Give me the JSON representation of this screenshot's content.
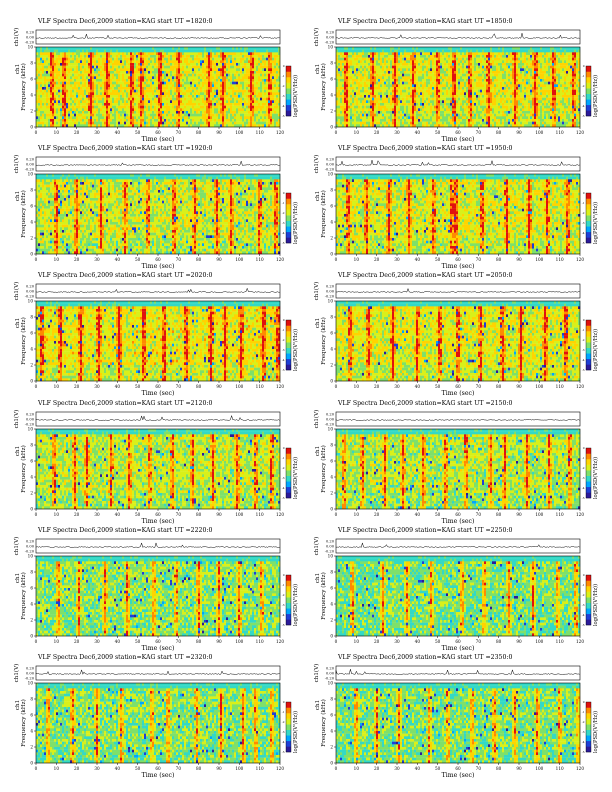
{
  "figure": {
    "title_prefix": "VLF Spectra",
    "date": "Dec6,2009",
    "station": "station=KAG",
    "start_label": "start  UT"
  },
  "chart_data": [
    {
      "type": "heatmap",
      "title": "VLF Spectra      Dec6,2009      station=KAG   start  UT  =1820:0",
      "start_ut": "=1820:0",
      "xlabel": "Time (sec)",
      "ylabel_top": "ch1(V)",
      "ylabel_main": "Frequency (kHz)",
      "channel_label": "ch1",
      "cbar_label": "log(PSD(V²/Hz))",
      "xlim": [
        0,
        120
      ],
      "ylim": [
        0,
        10
      ],
      "x_ticks": [
        0,
        10,
        20,
        30,
        40,
        50,
        60,
        70,
        80,
        90,
        100,
        110,
        120
      ],
      "y_ticks": [
        0,
        2,
        4,
        6,
        8,
        10
      ],
      "top_ticks": [
        "0.20",
        "0.00",
        "-0.20"
      ],
      "cbar_ticks": [
        0,
        -1,
        -2,
        -3,
        -4,
        -5
      ],
      "cutoff_khz": 9.3,
      "activity": 0.85,
      "vertical_bursts": [
        8,
        14,
        27,
        35,
        47,
        52,
        61,
        70,
        85,
        92,
        106,
        115
      ]
    },
    {
      "type": "heatmap",
      "title": "VLF Spectra      Dec6,2009      station=KAG   start  UT  =1850:0",
      "start_ut": "=1850:0",
      "xlabel": "Time (sec)",
      "ylabel_top": "ch1(V)",
      "ylabel_main": "Frequency (kHz)",
      "channel_label": "ch1",
      "cbar_label": "log(PSD(V²/Hz))",
      "xlim": [
        0,
        120
      ],
      "ylim": [
        0,
        10
      ],
      "x_ticks": [
        0,
        10,
        20,
        30,
        40,
        50,
        60,
        70,
        80,
        90,
        100,
        110,
        120
      ],
      "y_ticks": [
        0,
        2,
        4,
        6,
        8,
        10
      ],
      "top_ticks": [
        "0.20",
        "0.00",
        "-0.20"
      ],
      "cbar_ticks": [
        0,
        -1,
        -2,
        -3,
        -4,
        -5
      ],
      "cutoff_khz": 9.3,
      "activity": 0.8,
      "vertical_bursts": [
        5,
        18,
        29,
        38,
        50,
        58,
        66,
        75,
        88,
        98,
        107,
        117
      ]
    },
    {
      "type": "heatmap",
      "title": "VLF Spectra      Dec6,2009      station=KAG   start  UT  =1920:0",
      "start_ut": "=1920:0",
      "xlabel": "Time (sec)",
      "ylabel_top": "ch1(V)",
      "ylabel_main": "Frequency (kHz)",
      "channel_label": "ch1",
      "cbar_label": "log(PSD(V²/Hz))",
      "xlim": [
        0,
        120
      ],
      "ylim": [
        0,
        10
      ],
      "x_ticks": [
        0,
        10,
        20,
        30,
        40,
        50,
        60,
        70,
        80,
        90,
        100,
        110,
        120
      ],
      "y_ticks": [
        0,
        2,
        4,
        6,
        8,
        10
      ],
      "top_ticks": [
        "0.20",
        "0.00",
        "-0.20"
      ],
      "cbar_ticks": [
        0,
        -1,
        -2,
        -3,
        -4,
        -5
      ],
      "cutoff_khz": 9.3,
      "activity": 0.7,
      "vertical_bursts": [
        10,
        20,
        32,
        44,
        55,
        68,
        78,
        89,
        96,
        110,
        118
      ]
    },
    {
      "type": "heatmap",
      "title": "VLF Spectra      Dec6,2009      station=KAG   start  UT  =1950:0",
      "start_ut": "=1950:0",
      "xlabel": "Time (sec)",
      "ylabel_top": "ch1(V)",
      "ylabel_main": "Frequency (kHz)",
      "channel_label": "ch1",
      "cbar_label": "log(PSD(V²/Hz))",
      "xlim": [
        0,
        120
      ],
      "ylim": [
        0,
        10
      ],
      "x_ticks": [
        0,
        10,
        20,
        30,
        40,
        50,
        60,
        70,
        80,
        90,
        100,
        110,
        120
      ],
      "y_ticks": [
        0,
        2,
        4,
        6,
        8,
        10
      ],
      "top_ticks": [
        "0.20",
        "0.00",
        "-0.20"
      ],
      "cbar_ticks": [
        0,
        -1,
        -2,
        -3,
        -4,
        -5
      ],
      "cutoff_khz": 9.3,
      "activity": 0.78,
      "vertical_bursts": [
        6,
        15,
        26,
        36,
        48,
        57,
        59,
        72,
        84,
        95,
        104,
        114
      ]
    },
    {
      "type": "heatmap",
      "title": "VLF Spectra      Dec6,2009      station=KAG   start  UT  =2020:0",
      "start_ut": "=2020:0",
      "xlabel": "Time (sec)",
      "ylabel_top": "ch1(V)",
      "ylabel_main": "Frequency (kHz)",
      "channel_label": "ch1",
      "cbar_label": "log(PSD(V²/Hz))",
      "xlim": [
        0,
        120
      ],
      "ylim": [
        0,
        10
      ],
      "x_ticks": [
        0,
        10,
        20,
        30,
        40,
        50,
        60,
        70,
        80,
        90,
        100,
        110,
        120
      ],
      "y_ticks": [
        0,
        2,
        4,
        6,
        8,
        10
      ],
      "top_ticks": [
        "0.20",
        "0.00",
        "-0.20"
      ],
      "cbar_ticks": [
        0,
        -1,
        -2,
        -3,
        -4,
        -5
      ],
      "cutoff_khz": 9.3,
      "activity": 0.9,
      "vertical_bursts": [
        3,
        12,
        22,
        31,
        41,
        53,
        63,
        74,
        86,
        93,
        101,
        112,
        119
      ]
    },
    {
      "type": "heatmap",
      "title": "VLF Spectra      Dec6,2009      station=KAG   start  UT  =2050:0",
      "start_ut": "=2050:0",
      "xlabel": "Time (sec)",
      "ylabel_top": "ch1(V)",
      "ylabel_main": "Frequency (kHz)",
      "channel_label": "ch1",
      "cbar_label": "log(PSD(V²/Hz))",
      "xlim": [
        0,
        120
      ],
      "ylim": [
        0,
        10
      ],
      "x_ticks": [
        0,
        10,
        20,
        30,
        40,
        50,
        60,
        70,
        80,
        90,
        100,
        110,
        120
      ],
      "y_ticks": [
        0,
        2,
        4,
        6,
        8,
        10
      ],
      "top_ticks": [
        "0.20",
        "0.00",
        "-0.20"
      ],
      "cbar_ticks": [
        0,
        -1,
        -2,
        -3,
        -4,
        -5
      ],
      "cutoff_khz": 9.3,
      "activity": 0.82,
      "vertical_bursts": [
        7,
        16,
        28,
        40,
        51,
        60,
        71,
        82,
        91,
        103,
        113
      ]
    },
    {
      "type": "heatmap",
      "title": "VLF Spectra      Dec6,2009      station=KAG   start  UT  =2120:0",
      "start_ut": "=2120:0",
      "xlabel": "Time (sec)",
      "ylabel_top": "ch1(V)",
      "ylabel_main": "Frequency (kHz)",
      "channel_label": "ch1",
      "cbar_label": "log(PSD(V²/Hz))",
      "xlim": [
        0,
        120
      ],
      "ylim": [
        0,
        10
      ],
      "x_ticks": [
        0,
        10,
        20,
        30,
        40,
        50,
        60,
        70,
        80,
        90,
        100,
        110,
        120
      ],
      "y_ticks": [
        0,
        2,
        4,
        6,
        8,
        10
      ],
      "top_ticks": [
        "0.20",
        "0.00",
        "-0.20"
      ],
      "cbar_ticks": [
        0,
        -1,
        -2,
        -3,
        -4,
        -5
      ],
      "cutoff_khz": 9.3,
      "activity": 0.6,
      "vertical_bursts": [
        9,
        19,
        25,
        37,
        46,
        56,
        67,
        77,
        87,
        99,
        108,
        116
      ]
    },
    {
      "type": "heatmap",
      "title": "VLF Spectra      Dec6,2009      station=KAG   start  UT  =2150:0",
      "start_ut": "=2150:0",
      "xlabel": "Time (sec)",
      "ylabel_top": "ch1(V)",
      "ylabel_main": "Frequency (kHz)",
      "channel_label": "ch1",
      "cbar_label": "log(PSD(V²/Hz))",
      "xlim": [
        0,
        120
      ],
      "ylim": [
        0,
        10
      ],
      "x_ticks": [
        0,
        10,
        20,
        30,
        40,
        50,
        60,
        70,
        80,
        90,
        100,
        110,
        120
      ],
      "y_ticks": [
        0,
        2,
        4,
        6,
        8,
        10
      ],
      "top_ticks": [
        "0.20",
        "0.00",
        "-0.20"
      ],
      "cbar_ticks": [
        0,
        -1,
        -2,
        -3,
        -4,
        -5
      ],
      "cutoff_khz": 9.3,
      "activity": 0.55,
      "vertical_bursts": [
        4,
        13,
        24,
        33,
        43,
        54,
        64,
        76,
        83,
        94,
        105,
        115
      ]
    },
    {
      "type": "heatmap",
      "title": "VLF Spectra      Dec6,2009      station=KAG   start  UT  =2220:0",
      "start_ut": "=2220:0",
      "xlabel": "Time (sec)",
      "ylabel_top": "ch1(V)",
      "ylabel_main": "Frequency (kHz)",
      "channel_label": "ch1",
      "cbar_label": "log(PSD(V²/Hz))",
      "xlim": [
        0,
        120
      ],
      "ylim": [
        0,
        10
      ],
      "x_ticks": [
        0,
        10,
        20,
        30,
        40,
        50,
        60,
        70,
        80,
        90,
        100,
        110,
        120
      ],
      "y_ticks": [
        0,
        2,
        4,
        6,
        8,
        10
      ],
      "top_ticks": [
        "0.20",
        "0.00",
        "-0.20"
      ],
      "cbar_ticks": [
        0,
        -1,
        -2,
        -3,
        -4,
        -5
      ],
      "cutoff_khz": 9.3,
      "activity": 0.4,
      "vertical_bursts": [
        11,
        21,
        34,
        45,
        58,
        69,
        80,
        90,
        100,
        111
      ]
    },
    {
      "type": "heatmap",
      "title": "VLF Spectra      Dec6,2009      station=KAG   start  UT  =2250:0",
      "start_ut": "=2250:0",
      "xlabel": "Time (sec)",
      "ylabel_top": "ch1(V)",
      "ylabel_main": "Frequency (kHz)",
      "channel_label": "ch1",
      "cbar_label": "log(PSD(V²/Hz))",
      "xlim": [
        0,
        120
      ],
      "ylim": [
        0,
        10
      ],
      "x_ticks": [
        0,
        10,
        20,
        30,
        40,
        50,
        60,
        70,
        80,
        90,
        100,
        110,
        120
      ],
      "y_ticks": [
        0,
        2,
        4,
        6,
        8,
        10
      ],
      "top_ticks": [
        "0.20",
        "0.00",
        "-0.20"
      ],
      "cbar_ticks": [
        0,
        -1,
        -2,
        -3,
        -4,
        -5
      ],
      "cutoff_khz": 9.3,
      "activity": 0.3,
      "vertical_bursts": [
        8,
        23,
        35,
        47,
        62,
        73,
        85,
        97,
        109,
        118
      ]
    },
    {
      "type": "heatmap",
      "title": "VLF Spectra      Dec6,2009      station=KAG   start  UT  =2320:0",
      "start_ut": "=2320:0",
      "xlabel": "Time (sec)",
      "ylabel_top": "ch1(V)",
      "ylabel_main": "Frequency (kHz)",
      "channel_label": "ch1",
      "cbar_label": "log(PSD(V²/Hz))",
      "xlim": [
        0,
        120
      ],
      "ylim": [
        0,
        10
      ],
      "x_ticks": [
        0,
        10,
        20,
        30,
        40,
        50,
        60,
        70,
        80,
        90,
        100,
        110,
        120
      ],
      "y_ticks": [
        0,
        2,
        4,
        6,
        8,
        10
      ],
      "top_ticks": [
        "0.20",
        "0.00",
        "-0.20"
      ],
      "cbar_ticks": [
        0,
        -1,
        -2,
        -3,
        -4,
        -5
      ],
      "cutoff_khz": 9.3,
      "activity": 0.35,
      "vertical_bursts": [
        6,
        18,
        30,
        42,
        57,
        65,
        79,
        91,
        102,
        108,
        116
      ]
    },
    {
      "type": "heatmap",
      "title": "VLF Spectra      Dec6,2009      station=KAG   start  UT  =2350:0",
      "start_ut": "=2350:0",
      "xlabel": "Time (sec)",
      "ylabel_top": "ch1(V)",
      "ylabel_main": "Frequency (kHz)",
      "channel_label": "ch1",
      "cbar_label": "log(PSD(V²/Hz))",
      "xlim": [
        0,
        120
      ],
      "ylim": [
        0,
        10
      ],
      "x_ticks": [
        0,
        10,
        20,
        30,
        40,
        50,
        60,
        70,
        80,
        90,
        100,
        110,
        120
      ],
      "y_ticks": [
        0,
        2,
        4,
        6,
        8,
        10
      ],
      "top_ticks": [
        "0.20",
        "0.00",
        "-0.20"
      ],
      "cbar_ticks": [
        0,
        -1,
        -2,
        -3,
        -4,
        -5
      ],
      "cutoff_khz": 9.3,
      "activity": 0.32,
      "vertical_bursts": [
        10,
        20,
        31,
        46,
        55,
        67,
        78,
        88,
        99,
        110,
        119
      ]
    }
  ],
  "colors": {
    "background": "#ffffff",
    "colormap": [
      "#2b1a9a",
      "#1f3fd6",
      "#00a6ff",
      "#33d9c6",
      "#7ee06a",
      "#d9f01a",
      "#ffd400",
      "#ff8a00",
      "#e0100e"
    ],
    "axis": "#000000"
  }
}
